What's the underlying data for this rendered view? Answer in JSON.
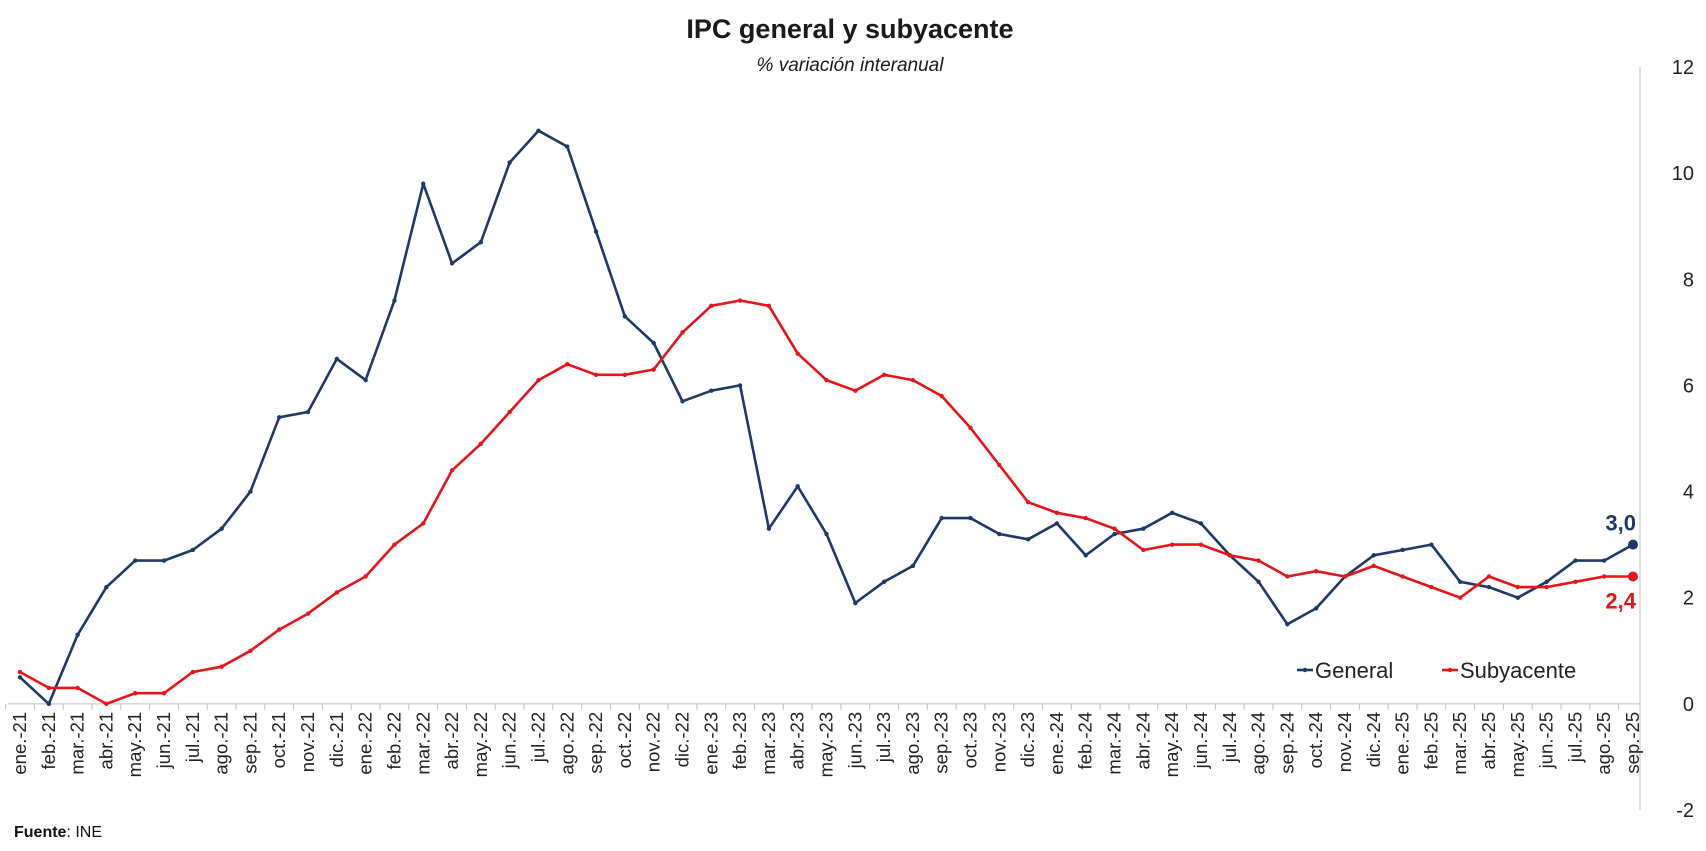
{
  "chart_data": {
    "type": "line",
    "title": "IPC general y subyacente",
    "subtitle": "% variación interanual",
    "source_label": "Fuente",
    "source_value": ": INE",
    "ylim": [
      -2,
      12
    ],
    "yticks": [
      -2,
      0,
      2,
      4,
      6,
      8,
      10,
      12
    ],
    "y_axis_side": "right",
    "legend_position": "bottom-right",
    "categories": [
      "ene.-21",
      "feb.-21",
      "mar.-21",
      "abr.-21",
      "may.-21",
      "jun.-21",
      "jul.-21",
      "ago.-21",
      "sep.-21",
      "oct.-21",
      "nov.-21",
      "dic.-21",
      "ene.-22",
      "feb.-22",
      "mar.-22",
      "abr.-22",
      "may.-22",
      "jun.-22",
      "jul.-22",
      "ago.-22",
      "sep.-22",
      "oct.-22",
      "nov.-22",
      "dic.-22",
      "ene.-23",
      "feb.-23",
      "mar.-23",
      "abr.-23",
      "may.-23",
      "jun.-23",
      "jul.-23",
      "ago.-23",
      "sep.-23",
      "oct.-23",
      "nov.-23",
      "dic.-23",
      "ene.-24",
      "feb.-24",
      "mar.-24",
      "abr.-24",
      "may.-24",
      "jun.-24",
      "jul.-24",
      "ago.-24",
      "sep.-24",
      "oct.-24",
      "nov.-24",
      "dic.-24",
      "ene.-25",
      "feb.-25",
      "mar.-25",
      "abr.-25",
      "may.-25",
      "jun.-25",
      "jul.-25",
      "ago.-25",
      "sep.-25"
    ],
    "series": [
      {
        "name": "General",
        "color": "#1f3864",
        "end_label": "3,0",
        "values": [
          0.5,
          0.0,
          1.3,
          2.2,
          2.7,
          2.7,
          2.9,
          3.3,
          4.0,
          5.4,
          5.5,
          6.5,
          6.1,
          7.6,
          9.8,
          8.3,
          8.7,
          10.2,
          10.8,
          10.5,
          8.9,
          7.3,
          6.8,
          5.7,
          5.9,
          6.0,
          3.3,
          4.1,
          3.2,
          1.9,
          2.3,
          2.6,
          3.5,
          3.5,
          3.2,
          3.1,
          3.4,
          2.8,
          3.2,
          3.3,
          3.6,
          3.4,
          2.8,
          2.3,
          1.5,
          1.8,
          2.4,
          2.8,
          2.9,
          3.0,
          2.3,
          2.2,
          2.0,
          2.3,
          2.7,
          2.7,
          3.0
        ]
      },
      {
        "name": "Subyacente",
        "color": "#e8141c",
        "end_label": "2,4",
        "values": [
          0.6,
          0.3,
          0.3,
          0.0,
          0.2,
          0.2,
          0.6,
          0.7,
          1.0,
          1.4,
          1.7,
          2.1,
          2.4,
          3.0,
          3.4,
          4.4,
          4.9,
          5.5,
          6.1,
          6.4,
          6.2,
          6.2,
          6.3,
          7.0,
          7.5,
          7.6,
          7.5,
          6.6,
          6.1,
          5.9,
          6.2,
          6.1,
          5.8,
          5.2,
          4.5,
          3.8,
          3.6,
          3.5,
          3.3,
          2.9,
          3.0,
          3.0,
          2.8,
          2.7,
          2.4,
          2.5,
          2.4,
          2.6,
          2.4,
          2.2,
          2.0,
          2.4,
          2.2,
          2.2,
          2.3,
          2.4,
          2.4
        ]
      }
    ]
  }
}
